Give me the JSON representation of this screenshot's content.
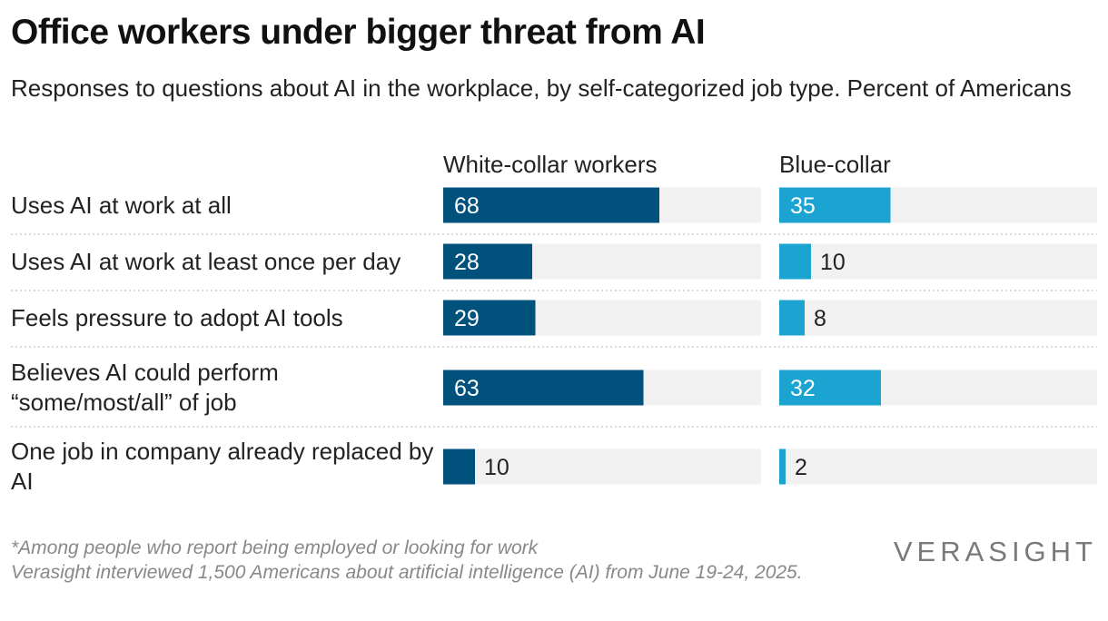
{
  "title": "Office workers under bigger threat from AI",
  "subtitle": "Responses to questions about AI in the workplace, by self-categorized job type. Percent of Americans",
  "footnote": {
    "line1": "*Among people who report being employed or looking for work",
    "line2": "Verasight interviewed 1,500 Americans about artificial intelligence (AI) from June 19-24, 2025."
  },
  "logo": "VERASIGHT",
  "colors": {
    "white_collar": "#00527c",
    "blue_collar": "#1ba3d1",
    "track": "#f1f1f1"
  },
  "chart_data": {
    "type": "bar",
    "orientation": "horizontal",
    "categories": [
      "Uses AI at work at all",
      "Uses AI at work at least once per day",
      "Feels pressure to adopt AI tools",
      "Believes AI could perform “some/most/all” of job",
      "One job in company already replaced by AI"
    ],
    "series": [
      {
        "name": "White-collar workers",
        "values": [
          68,
          28,
          29,
          63,
          10
        ]
      },
      {
        "name": "Blue-collar",
        "values": [
          35,
          10,
          8,
          32,
          2
        ]
      }
    ],
    "xlim": [
      0,
      100
    ],
    "grid": false,
    "legend": "column headers"
  }
}
